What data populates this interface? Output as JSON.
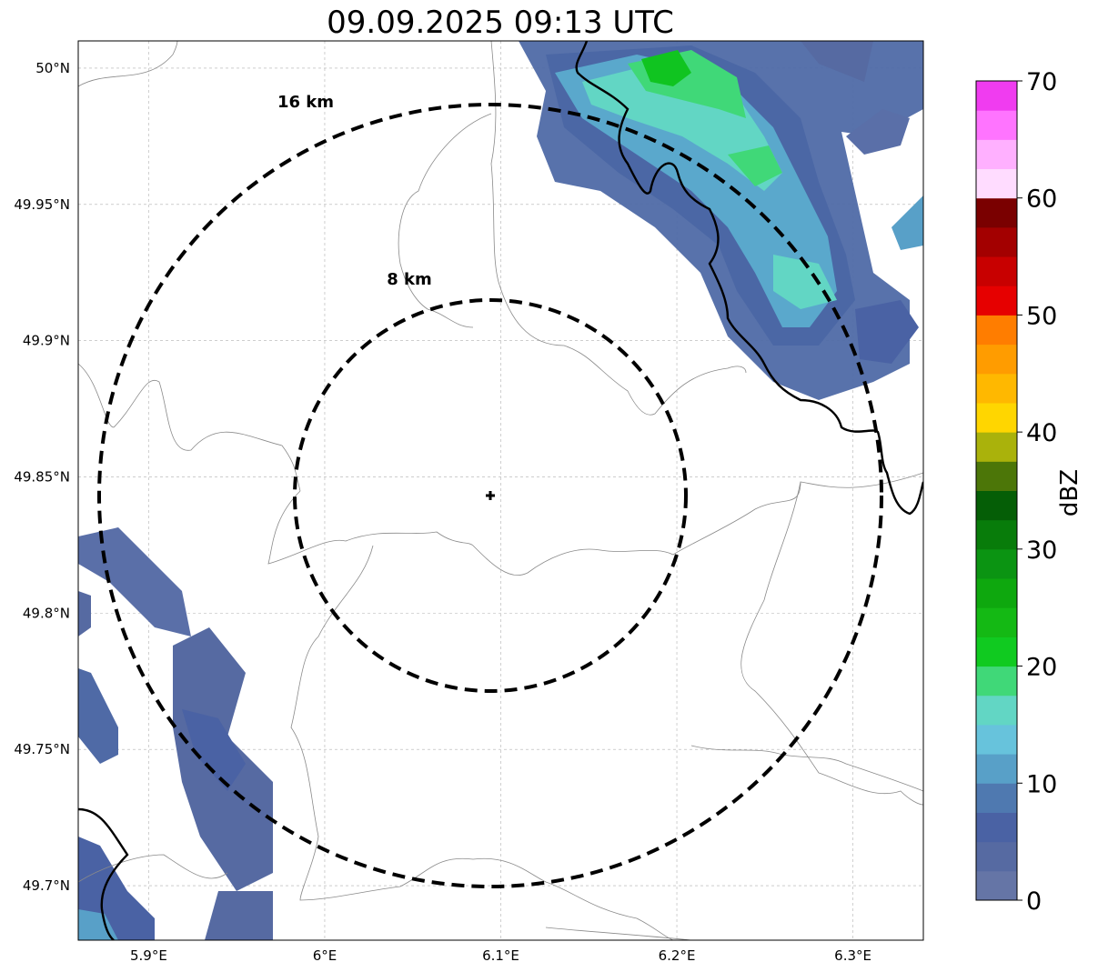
{
  "title": "09.09.2025 09:13 UTC",
  "map": {
    "lon_range": [
      5.86,
      6.34
    ],
    "lat_range": [
      49.68,
      50.01
    ],
    "x_ticks": [
      {
        "value": 5.9,
        "label": "5.9°E"
      },
      {
        "value": 6.0,
        "label": "6°E"
      },
      {
        "value": 6.1,
        "label": "6.1°E"
      },
      {
        "value": 6.2,
        "label": "6.2°E"
      },
      {
        "value": 6.3,
        "label": "6.3°E"
      }
    ],
    "y_ticks": [
      {
        "value": 50.0,
        "label": "50°N"
      },
      {
        "value": 49.95,
        "label": "49.95°N"
      },
      {
        "value": 49.9,
        "label": "49.9°N"
      },
      {
        "value": 49.85,
        "label": "49.85°N"
      },
      {
        "value": 49.8,
        "label": "49.8°N"
      },
      {
        "value": 49.75,
        "label": "49.75°N"
      },
      {
        "value": 49.7,
        "label": "49.7°N"
      }
    ],
    "grid": true,
    "center": {
      "lon": 6.095,
      "lat": 49.843,
      "marker": "plus-marker"
    },
    "range_rings": [
      {
        "label": "8 km",
        "radius_km": 8
      },
      {
        "label": "16 km",
        "radius_km": 16
      }
    ],
    "national_border_color": "#000000",
    "admin_border_color": "#8a8a8a"
  },
  "colorbar": {
    "label": "dBZ",
    "min": 0,
    "max": 70,
    "step": 2.5,
    "tick_labels": [
      "0",
      "10",
      "20",
      "30",
      "40",
      "50",
      "60",
      "70"
    ],
    "colors": [
      "#6575a6",
      "#566aa2",
      "#4a62a4",
      "#4f79b0",
      "#58a0c8",
      "#67c3dc",
      "#62d6c4",
      "#40d878",
      "#10ca20",
      "#14b914",
      "#0ea80e",
      "#0b9412",
      "#087c0a",
      "#055e06",
      "#4c7608",
      "#aab20b",
      "#ffd600",
      "#ffb800",
      "#ff9c00",
      "#ff7d00",
      "#e60000",
      "#c80000",
      "#a30000",
      "#7a0000",
      "#ffdcff",
      "#ffb0ff",
      "#ff74ff",
      "#f03cf0"
    ]
  }
}
